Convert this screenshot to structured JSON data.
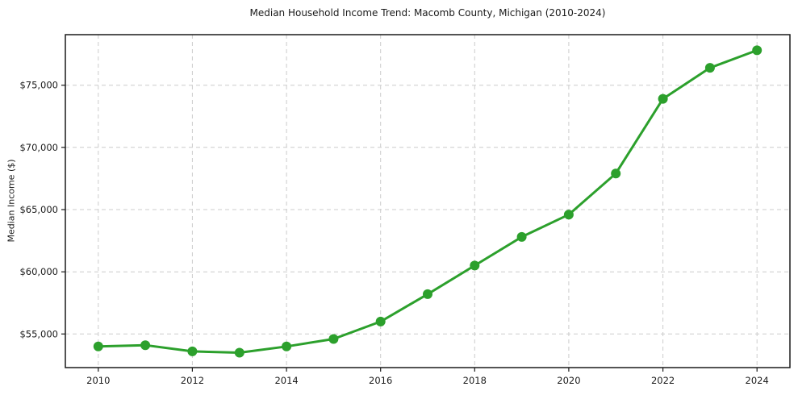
{
  "chart_data": {
    "type": "line",
    "title": "Median Household Income Trend: Macomb County, Michigan (2010-2024)",
    "xlabel": "",
    "ylabel": "Median Income ($)",
    "series_name": "Median household income",
    "x": [
      2010,
      2011,
      2012,
      2013,
      2014,
      2015,
      2016,
      2017,
      2018,
      2019,
      2020,
      2021,
      2022,
      2023,
      2024
    ],
    "values": [
      54000,
      54100,
      53600,
      53500,
      54000,
      54600,
      56000,
      58200,
      60500,
      62800,
      64600,
      67900,
      73900,
      76400,
      77800
    ],
    "xticks": [
      {
        "value": 2010,
        "label": "2010"
      },
      {
        "value": 2012,
        "label": "2012"
      },
      {
        "value": 2014,
        "label": "2014"
      },
      {
        "value": 2016,
        "label": "2016"
      },
      {
        "value": 2018,
        "label": "2018"
      },
      {
        "value": 2020,
        "label": "2020"
      },
      {
        "value": 2022,
        "label": "2022"
      },
      {
        "value": 2024,
        "label": "2024"
      }
    ],
    "yticks": [
      {
        "value": 55000,
        "label": "$55,000"
      },
      {
        "value": 60000,
        "label": "$60,000"
      },
      {
        "value": 65000,
        "label": "$65,000"
      },
      {
        "value": 70000,
        "label": "$70,000"
      },
      {
        "value": 75000,
        "label": "$75,000"
      }
    ],
    "xlim": [
      2009.3,
      2024.7
    ],
    "ylim": [
      52300,
      79060
    ],
    "grid": true,
    "grid_style": "dashed",
    "legend_position": "none",
    "marker": "circle",
    "marker_radius": 6,
    "line_width": 3,
    "colors": {
      "line": "#2ca02c",
      "marker": "#2ca02c",
      "grid": "#cccccc",
      "spine": "#1a1a1a",
      "text": "#1a1a1a",
      "background": "#ffffff"
    }
  }
}
